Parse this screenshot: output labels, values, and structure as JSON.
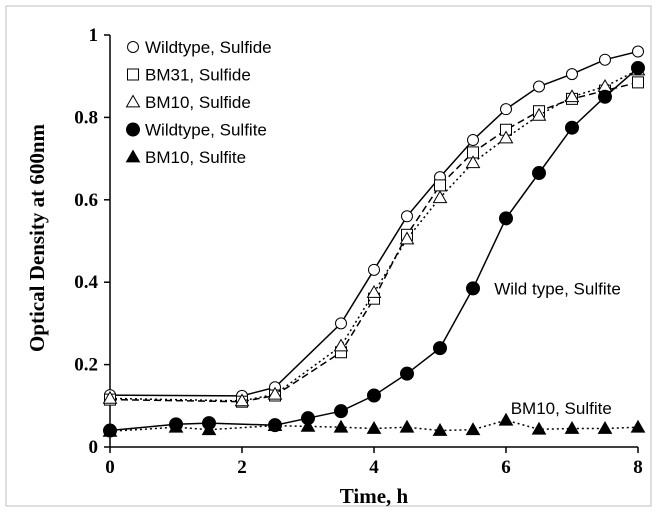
{
  "chart_data": {
    "type": "line",
    "title": "",
    "xlabel": "Time, h",
    "ylabel": "Optical Density at 600nm",
    "xlim": [
      0,
      8
    ],
    "ylim": [
      0,
      1
    ],
    "x_ticks": [
      "0",
      "2",
      "4",
      "6",
      "8"
    ],
    "y_ticks": [
      "0",
      "0.2",
      "0.4",
      "0.6",
      "0.8",
      "1"
    ],
    "grid": false,
    "legend_position": "top-left",
    "series": [
      {
        "name": "Wildtype, Sulfide",
        "marker": "open-circle",
        "line": "solid",
        "x": [
          0,
          2,
          2.5,
          3.5,
          4,
          4.5,
          5,
          5.5,
          6,
          6.5,
          7,
          7.5,
          8
        ],
        "y": [
          0.126,
          0.124,
          0.145,
          0.3,
          0.43,
          0.56,
          0.655,
          0.745,
          0.82,
          0.875,
          0.905,
          0.94,
          0.96
        ]
      },
      {
        "name": "BM31, Sulfide",
        "marker": "open-square",
        "line": "dashed",
        "x": [
          0,
          2,
          2.5,
          3.5,
          4,
          4.5,
          5,
          5.5,
          6,
          6.5,
          7,
          7.5,
          8
        ],
        "y": [
          0.115,
          0.11,
          0.125,
          0.23,
          0.36,
          0.515,
          0.635,
          0.715,
          0.77,
          0.815,
          0.845,
          0.865,
          0.885
        ]
      },
      {
        "name": "BM10, Sulfide",
        "marker": "open-triangle",
        "line": "dotted",
        "x": [
          0,
          2,
          2.5,
          3.5,
          4,
          4.5,
          5,
          5.5,
          6,
          6.5,
          7,
          7.5,
          8
        ],
        "y": [
          0.118,
          0.112,
          0.128,
          0.245,
          0.375,
          0.505,
          0.605,
          0.69,
          0.75,
          0.805,
          0.85,
          0.875,
          0.915
        ]
      },
      {
        "name": "Wildtype, Sulfite",
        "marker": "filled-circle",
        "line": "solid",
        "x": [
          0,
          1,
          1.5,
          2.5,
          3,
          3.5,
          4,
          4.5,
          5,
          5.5,
          6,
          6.5,
          7,
          7.5,
          8
        ],
        "y": [
          0.04,
          0.055,
          0.058,
          0.053,
          0.07,
          0.087,
          0.125,
          0.178,
          0.24,
          0.385,
          0.555,
          0.665,
          0.775,
          0.85,
          0.92
        ]
      },
      {
        "name": "BM10, Sulfite",
        "marker": "filled-triangle",
        "line": "dotted",
        "x": [
          0,
          1,
          1.5,
          2.5,
          3,
          3.5,
          4,
          4.5,
          5,
          5.5,
          6,
          6.5,
          7,
          7.5,
          8
        ],
        "y": [
          0.038,
          0.048,
          0.042,
          0.052,
          0.05,
          0.048,
          0.045,
          0.048,
          0.04,
          0.042,
          0.065,
          0.043,
          0.045,
          0.045,
          0.048
        ]
      }
    ],
    "annotations": [
      {
        "text": "Wild type, Sulfite",
        "x": 5.7,
        "y": 0.385
      },
      {
        "text": "BM10, Sulfite",
        "x": 5.95,
        "y": 0.095
      }
    ]
  }
}
